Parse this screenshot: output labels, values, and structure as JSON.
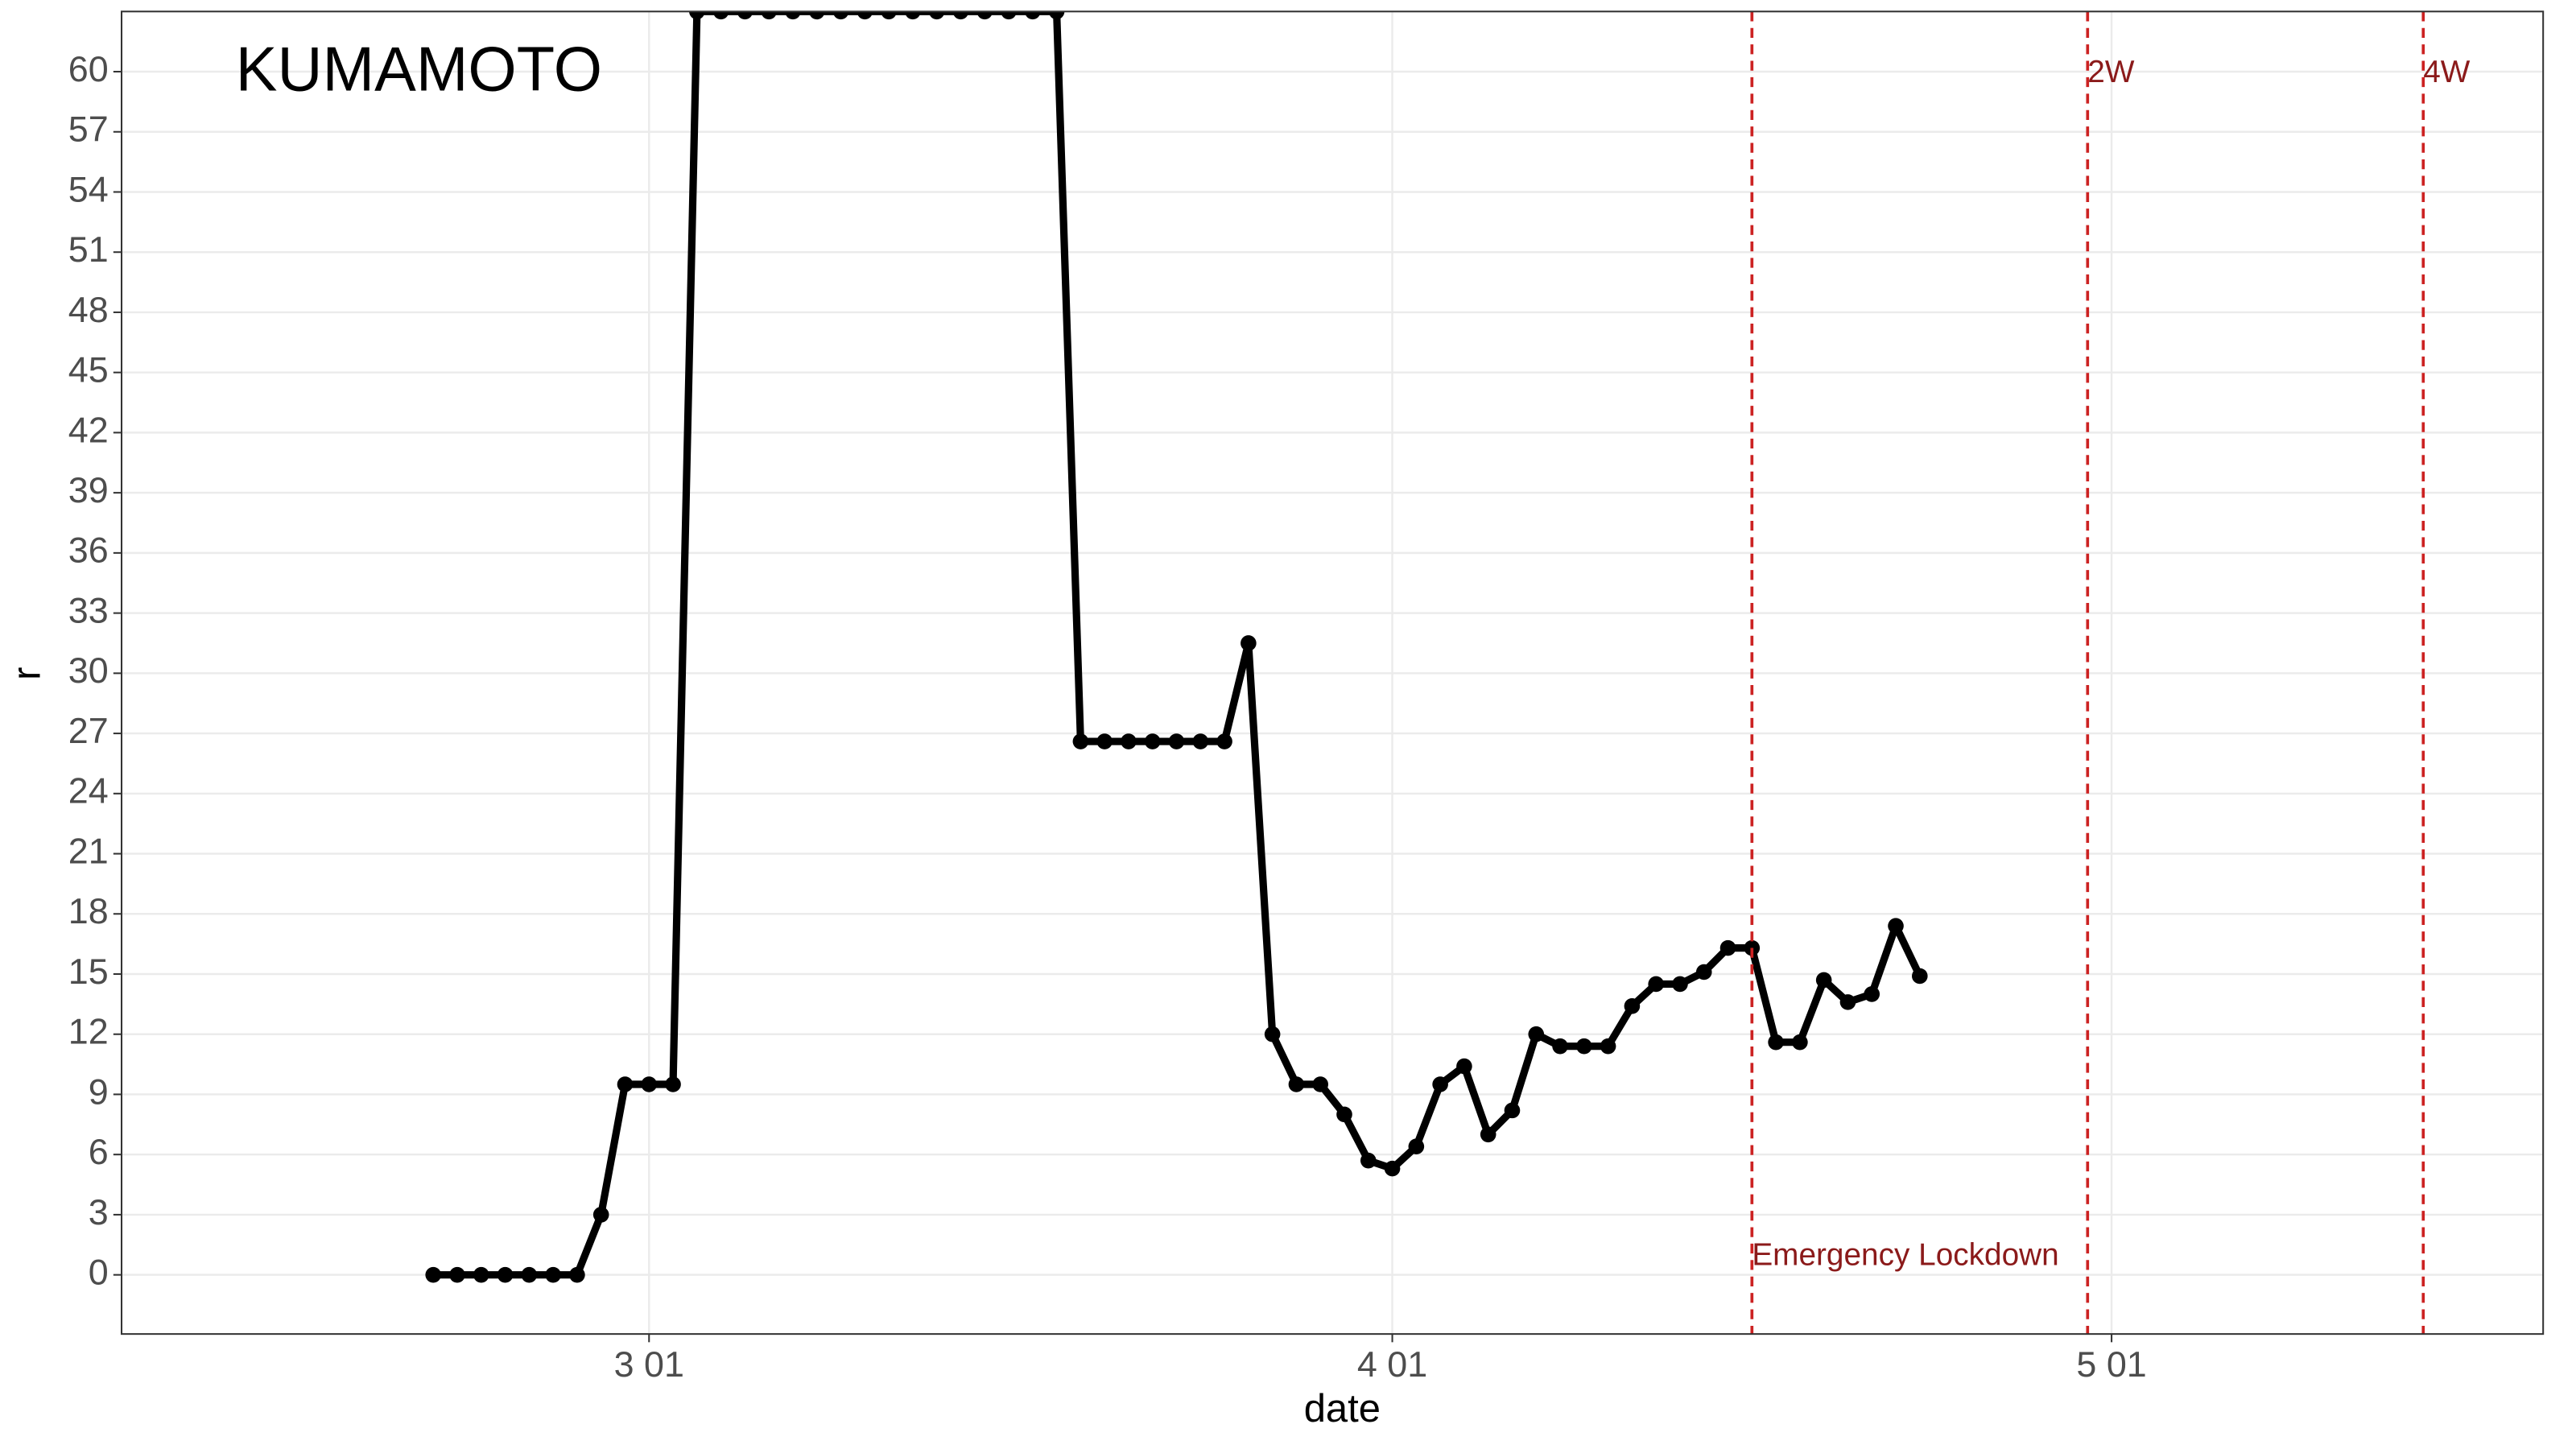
{
  "chart_data": {
    "type": "line",
    "title": "KUMAMOTO",
    "x_label": "date",
    "y_label": "r",
    "x": [
      "02-21",
      "02-22",
      "02-23",
      "02-24",
      "02-25",
      "02-26",
      "02-27",
      "02-28",
      "02-29",
      "03-01",
      "03-02",
      "03-03",
      "03-04",
      "03-05",
      "03-06",
      "03-07",
      "03-08",
      "03-09",
      "03-10",
      "03-11",
      "03-12",
      "03-13",
      "03-14",
      "03-15",
      "03-16",
      "03-17",
      "03-18",
      "03-19",
      "03-20",
      "03-21",
      "03-22",
      "03-23",
      "03-24",
      "03-25",
      "03-26",
      "03-27",
      "03-28",
      "03-29",
      "03-30",
      "03-31",
      "04-01",
      "04-02",
      "04-03",
      "04-04",
      "04-05",
      "04-06",
      "04-07",
      "04-08",
      "04-09",
      "04-10",
      "04-11",
      "04-12",
      "04-13",
      "04-14",
      "04-15",
      "04-16",
      "04-17",
      "04-18",
      "04-19",
      "04-20",
      "04-21",
      "04-22",
      "04-23"
    ],
    "values": [
      0,
      0,
      0,
      0,
      0,
      0,
      0,
      3,
      9.5,
      9.5,
      9.5,
      63,
      63,
      63,
      63,
      63,
      63,
      63,
      63,
      63,
      63,
      63,
      63,
      63,
      63,
      63,
      63,
      26.6,
      26.6,
      26.6,
      26.6,
      26.6,
      26.6,
      26.6,
      31.5,
      12,
      9.5,
      9.5,
      8,
      5.7,
      5.3,
      6.4,
      9.5,
      10.4,
      7,
      8.2,
      12,
      11.4,
      11.4,
      11.4,
      13.4,
      14.5,
      14.5,
      15.1,
      16.3,
      16.3,
      11.6,
      11.6,
      14.7,
      13.6,
      14,
      17.4,
      14.9
    ],
    "color": "#000000",
    "xlim": [
      "02-08",
      "05-19"
    ],
    "xticks": [
      {
        "value": "03-01",
        "label": "3 01"
      },
      {
        "value": "04-01",
        "label": "4 01"
      },
      {
        "value": "05-01",
        "label": "5 01"
      }
    ],
    "ylim": [
      -2.95,
      63.0
    ],
    "yticks": [
      0,
      3,
      6,
      9,
      12,
      15,
      18,
      21,
      24,
      27,
      30,
      33,
      36,
      39,
      42,
      45,
      48,
      51,
      54,
      57,
      60
    ],
    "grid": true,
    "vlines": [
      {
        "x": "04-16",
        "label": "Emergency Lockdown"
      },
      {
        "x": "04-30",
        "label": "2W"
      },
      {
        "x": "05-14",
        "label": "4W"
      }
    ],
    "vline_color": "#cc2222",
    "vline_label_color": "#8b1a1a"
  }
}
